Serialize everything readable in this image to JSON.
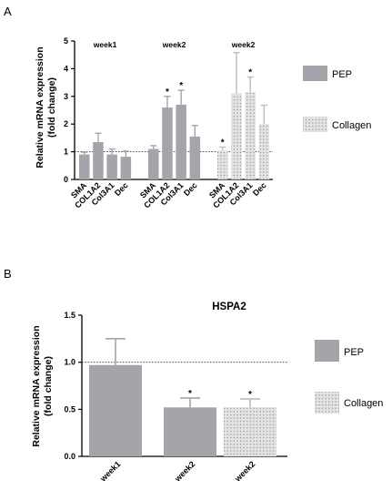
{
  "colors": {
    "pep": "#a4a4aa",
    "collagen": "#e2e2e2",
    "dots": "#777777",
    "axis": "#000000"
  },
  "chart_data": [
    {
      "panel": "A",
      "type": "bar",
      "ylabel_line1": "Relative mRNA expression",
      "ylabel_line2": "(fold change)",
      "ylim": [
        0,
        5
      ],
      "yticks": [
        "0",
        "1",
        "2",
        "3",
        "4",
        "5"
      ],
      "reference_line": 1,
      "groups": [
        {
          "label": "week1",
          "series": "PEP",
          "categories": [
            "SMA",
            "COL1A2",
            "Col3A1",
            "Dec"
          ],
          "values": [
            0.9,
            1.35,
            0.9,
            0.82
          ],
          "errors": [
            0.08,
            0.32,
            0.2,
            0.2
          ],
          "significant": [
            false,
            false,
            false,
            false
          ]
        },
        {
          "label": "week2",
          "series": "PEP",
          "categories": [
            "SMA",
            "COL1A2",
            "Col3A1",
            "Dec"
          ],
          "values": [
            1.1,
            2.6,
            2.7,
            1.55
          ],
          "errors": [
            0.12,
            0.4,
            0.52,
            0.4
          ],
          "significant": [
            false,
            true,
            true,
            false
          ]
        },
        {
          "label": "week2",
          "series": "Collagen",
          "categories": [
            "SMA",
            "COL1A2",
            "Col3A1",
            "Dec"
          ],
          "values": [
            1.05,
            3.1,
            3.15,
            2.0
          ],
          "errors": [
            0.12,
            1.48,
            0.55,
            0.68
          ],
          "significant": [
            true,
            false,
            true,
            false
          ]
        }
      ],
      "legend": [
        "PEP",
        "Collagen"
      ]
    },
    {
      "panel": "B",
      "type": "bar",
      "title": "HSPA2",
      "ylabel_line1": "Relative mRNA expression",
      "ylabel_line2": "(fold change)",
      "ylim": [
        0,
        1.5
      ],
      "yticks": [
        "0.0",
        "0.5",
        "1.0",
        "1.5"
      ],
      "reference_line": 1,
      "categories": [
        "week1",
        "week2",
        "week2"
      ],
      "series_of_bar": [
        "PEP",
        "PEP",
        "Collagen"
      ],
      "values": [
        0.97,
        0.52,
        0.52
      ],
      "errors": [
        0.28,
        0.1,
        0.09
      ],
      "significant": [
        false,
        true,
        true
      ],
      "legend": [
        "PEP",
        "Collagen"
      ]
    }
  ],
  "significance_marker": "*"
}
